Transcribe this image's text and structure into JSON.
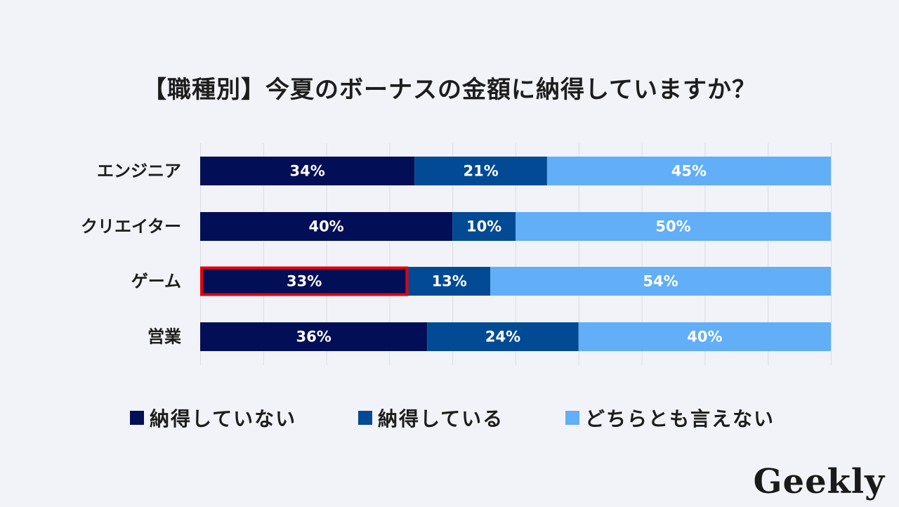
{
  "title": "【職種別】今夏のボーナスの金額に納得していますか？",
  "logo": "Geekly",
  "colors": {
    "series_1": "#020f56",
    "series_2": "#024a94",
    "series_3": "#62aef7",
    "highlight": "#e3000b",
    "grid": "#d9dce3",
    "label_text": "#ffffff"
  },
  "chart_data": {
    "type": "bar",
    "orientation": "horizontal",
    "stacked": true,
    "title": "【職種別】今夏のボーナスの金額に納得していますか？",
    "categories": [
      "エンジニア",
      "クリエイター",
      "ゲーム",
      "営業"
    ],
    "series": [
      {
        "name": "納得していない",
        "values": [
          34,
          40,
          33,
          36
        ],
        "labels": [
          "34%",
          "40%",
          "33%",
          "36%"
        ]
      },
      {
        "name": "納得している",
        "values": [
          21,
          10,
          13,
          24
        ],
        "labels": [
          "21%",
          "10%",
          "13%",
          "24%"
        ]
      },
      {
        "name": "どちらとも言えない",
        "values": [
          45,
          50,
          54,
          40
        ],
        "labels": [
          "45%",
          "50%",
          "54%",
          "40%"
        ]
      }
    ],
    "xlim": [
      0,
      100
    ],
    "grid": true,
    "legend": "bottom",
    "highlight": {
      "category": "ゲーム",
      "series": "納得していない"
    }
  }
}
